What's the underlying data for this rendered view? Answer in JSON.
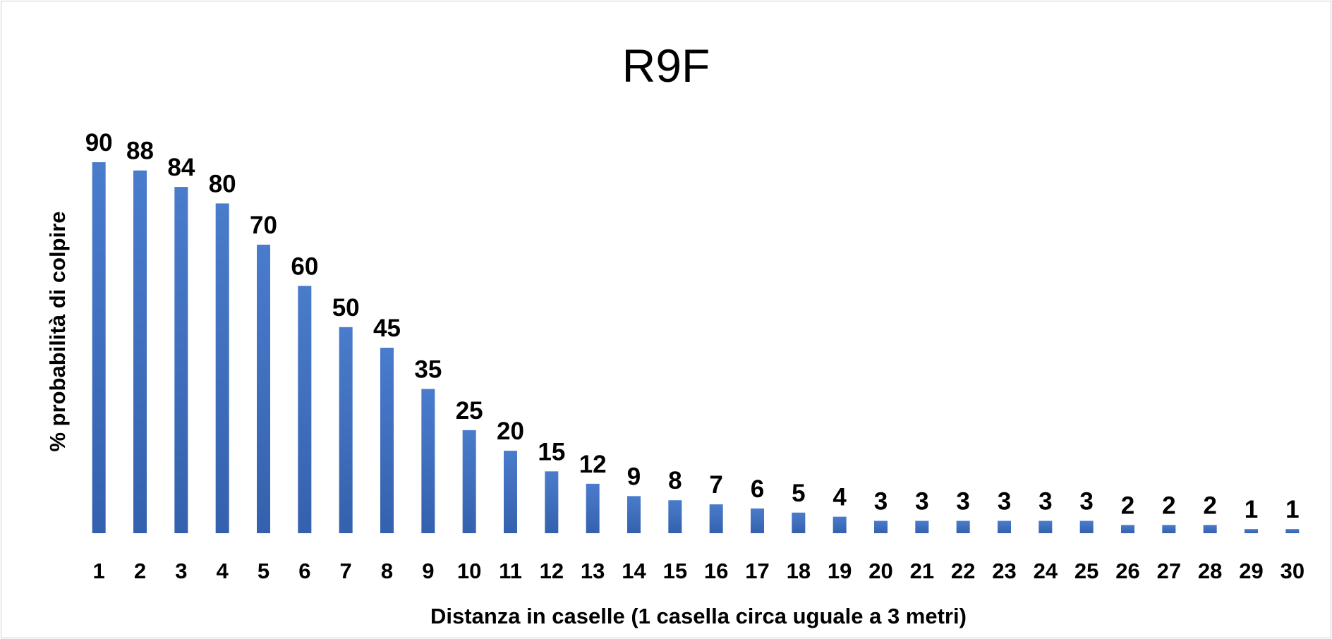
{
  "chart_data": {
    "type": "bar",
    "title": "R9F",
    "xlabel": "Distanza in caselle (1 casella circa uguale a 3 metri)",
    "ylabel": "% probabilità di colpire",
    "categories": [
      "1",
      "2",
      "3",
      "4",
      "5",
      "6",
      "7",
      "8",
      "9",
      "10",
      "11",
      "12",
      "13",
      "14",
      "15",
      "16",
      "17",
      "18",
      "19",
      "20",
      "21",
      "22",
      "23",
      "24",
      "25",
      "26",
      "27",
      "28",
      "29",
      "30"
    ],
    "values": [
      90,
      88,
      84,
      80,
      70,
      60,
      50,
      45,
      35,
      25,
      20,
      15,
      12,
      9,
      8,
      7,
      6,
      5,
      4,
      3,
      3,
      3,
      3,
      3,
      3,
      2,
      2,
      2,
      1,
      1
    ],
    "ylim": [
      0,
      90
    ],
    "grid": false,
    "legend": "none",
    "bar_color_top": "#4a7ccc",
    "bar_color_bottom": "#3461ad",
    "show_data_labels": true
  }
}
